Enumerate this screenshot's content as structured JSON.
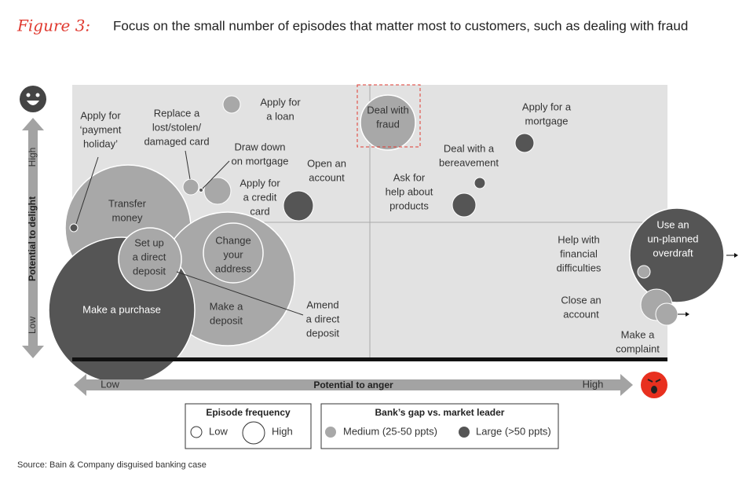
{
  "title": {
    "label": "Figure 3:",
    "text": "Focus on the small number of episodes that matter most to customers, such as dealing with fraud"
  },
  "y_axis": {
    "label": "Potential to delight",
    "high": "High",
    "low": "Low"
  },
  "x_axis": {
    "label": "Potential to anger",
    "low": "Low",
    "high": "High"
  },
  "episodes": [
    {
      "label": [
        "Transfer",
        "money"
      ]
    },
    {
      "label": [
        "Make a",
        "deposit"
      ]
    },
    {
      "label": [
        "Make a purchase"
      ]
    },
    {
      "label": [
        "Set up",
        "a direct",
        "deposit"
      ]
    },
    {
      "label": [
        "Change",
        "your",
        "address"
      ]
    },
    {
      "label": [
        "Apply for",
        "‘payment",
        "holiday’"
      ]
    },
    {
      "label": [
        "Replace a",
        "lost/stolen/",
        "damaged card"
      ]
    },
    {
      "label": [
        "Draw down",
        "on mortgage"
      ]
    },
    {
      "label": [
        "Apply for",
        "a credit",
        "card"
      ]
    },
    {
      "label": [
        "Apply for",
        "a loan"
      ]
    },
    {
      "label": [
        "Open an",
        "account"
      ]
    },
    {
      "label": [
        "Amend",
        "a direct",
        "deposit"
      ]
    },
    {
      "label": [
        "Deal with",
        "fraud"
      ]
    },
    {
      "label": [
        "Ask for",
        "help about",
        "products"
      ]
    },
    {
      "label": [
        "Deal with a",
        "bereavement"
      ]
    },
    {
      "label": [
        "Apply for a",
        "mortgage"
      ]
    },
    {
      "label": [
        "Use an",
        "un-planned",
        "overdraft"
      ]
    },
    {
      "label": [
        "Help with",
        "financial",
        "difficulties"
      ]
    },
    {
      "label": [
        "Close an",
        "account"
      ]
    },
    {
      "label": [
        "Make a",
        "complaint"
      ]
    }
  ],
  "legend": {
    "frequency": {
      "title": "Episode frequency",
      "low": "Low",
      "high": "High"
    },
    "gap": {
      "title": "Bank’s gap vs. market leader",
      "medium": "Medium (25-50 ppts)",
      "large": "Large (>50 ppts)"
    }
  },
  "source": "Source: Bain & Company disguised banking case"
}
